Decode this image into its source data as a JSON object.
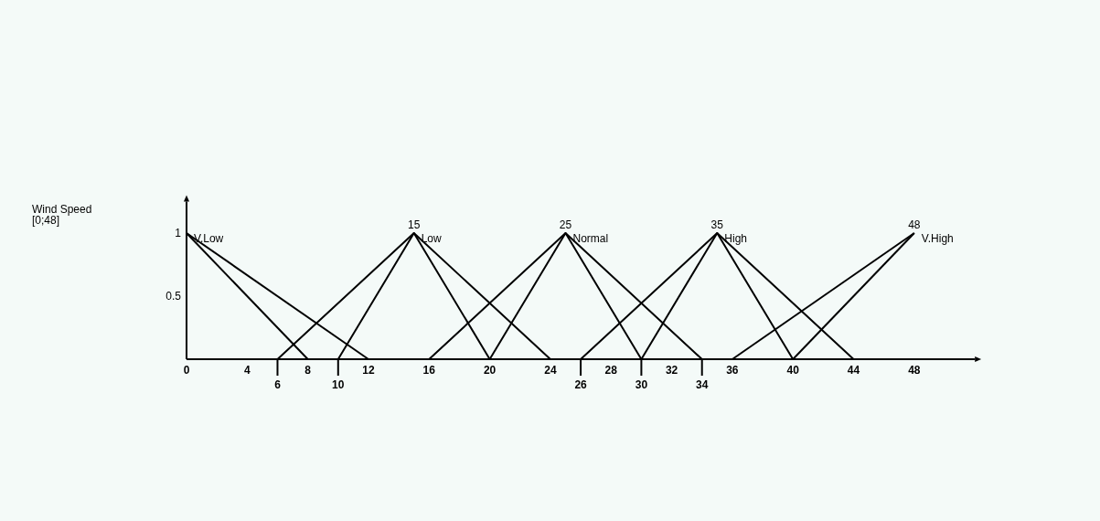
{
  "chart_data": {
    "type": "line",
    "xlim": [
      0,
      52
    ],
    "ylim": [
      0,
      1.25
    ],
    "xticks": [
      0,
      4,
      8,
      12,
      16,
      20,
      24,
      28,
      32,
      36,
      40,
      44,
      48
    ],
    "yticks": [
      0.5,
      1
    ],
    "marker": "none",
    "line_style": "solid",
    "grid": false,
    "legend": false,
    "series": [
      {
        "name": "V.Low",
        "color": "#000000",
        "x": [
          0,
          8
        ],
        "values": [
          1,
          0
        ]
      },
      {
        "color": "#000000",
        "x": [
          0,
          12
        ],
        "values": [
          1,
          0
        ]
      },
      {
        "name": "Low",
        "color": "#000000",
        "x": [
          6,
          15,
          24
        ],
        "values": [
          0,
          1,
          0
        ]
      },
      {
        "color": "#000000",
        "x": [
          10,
          15,
          20
        ],
        "values": [
          0,
          1,
          0
        ]
      },
      {
        "name": "Normal",
        "color": "#000000",
        "x": [
          16,
          25,
          34
        ],
        "values": [
          0,
          1,
          0
        ]
      },
      {
        "color": "#000000",
        "x": [
          20,
          25,
          30
        ],
        "values": [
          0,
          1,
          0
        ]
      },
      {
        "name": "High",
        "color": "#000000",
        "x": [
          26,
          35,
          44
        ],
        "values": [
          0,
          1,
          0
        ]
      },
      {
        "color": "#000000",
        "x": [
          30,
          35,
          40
        ],
        "values": [
          0,
          1,
          0
        ]
      },
      {
        "name": "V.High",
        "color": "#000000",
        "x": [
          36,
          48
        ],
        "values": [
          0,
          1
        ]
      },
      {
        "color": "#000000",
        "x": [
          40,
          48
        ],
        "values": [
          0,
          1
        ]
      }
    ],
    "annotations": [
      "Wind Speed\n[0;48]",
      {
        "text": "6",
        "x": 6,
        "y": 0
      },
      {
        "text": "10",
        "x": 10,
        "y": 0
      },
      {
        "text": "26",
        "x": 26,
        "y": 0
      },
      {
        "text": "30",
        "x": 30,
        "y": 0
      },
      {
        "text": "34",
        "x": 34,
        "y": 0
      },
      {
        "text": "15",
        "x": 15,
        "y": 1
      },
      {
        "text": "25",
        "x": 25,
        "y": 1
      },
      {
        "text": "35",
        "x": 35,
        "y": 1
      },
      {
        "text": "48",
        "x": 48,
        "y": 1
      }
    ]
  }
}
